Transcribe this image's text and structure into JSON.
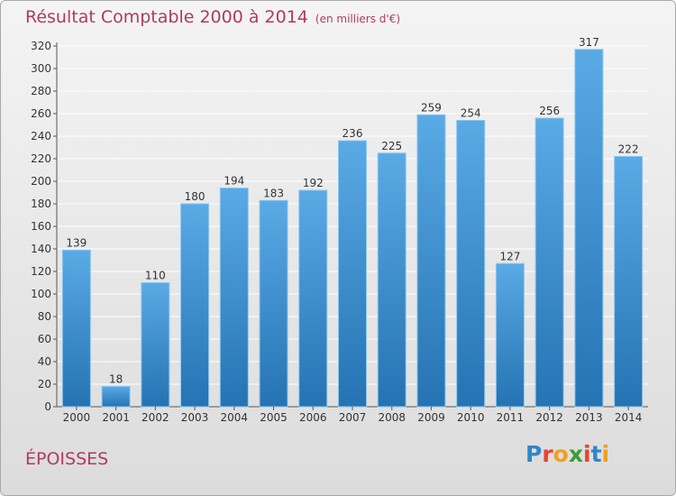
{
  "title": "Résultat Comptable 2000 à 2014",
  "subtitle": "(en milliers d'€)",
  "commune": "ÉPOISSES",
  "logo": {
    "text": "Proxiti",
    "letters": [
      {
        "char": "P",
        "color": "#2f86c8"
      },
      {
        "char": "r",
        "color": "#e8432e"
      },
      {
        "char": "o",
        "color": "#f0a020"
      },
      {
        "char": "x",
        "color": "#3a9c3a"
      },
      {
        "char": "i",
        "color": "#e8432e"
      },
      {
        "char": "t",
        "color": "#2f86c8"
      },
      {
        "char": "i",
        "color": "#f0a020"
      }
    ]
  },
  "colors": {
    "title": "#b03a62",
    "bar_top": "#5aaae6",
    "bar_bottom": "#2573b2",
    "grid": "#ffffff"
  },
  "chart_data": {
    "type": "bar",
    "title": "Résultat Comptable 2000 à 2014",
    "subtitle": "(en milliers d'€)",
    "categories": [
      "2000",
      "2001",
      "2002",
      "2003",
      "2004",
      "2005",
      "2006",
      "2007",
      "2008",
      "2009",
      "2010",
      "2011",
      "2012",
      "2013",
      "2014"
    ],
    "values": [
      139,
      18,
      110,
      180,
      194,
      183,
      192,
      236,
      225,
      259,
      254,
      127,
      256,
      317,
      222
    ],
    "ylim": [
      0,
      320
    ],
    "yticks": [
      0,
      20,
      40,
      60,
      80,
      100,
      120,
      140,
      160,
      180,
      200,
      220,
      240,
      260,
      280,
      300,
      320
    ],
    "grid": true,
    "xlabel": "",
    "ylabel": ""
  }
}
